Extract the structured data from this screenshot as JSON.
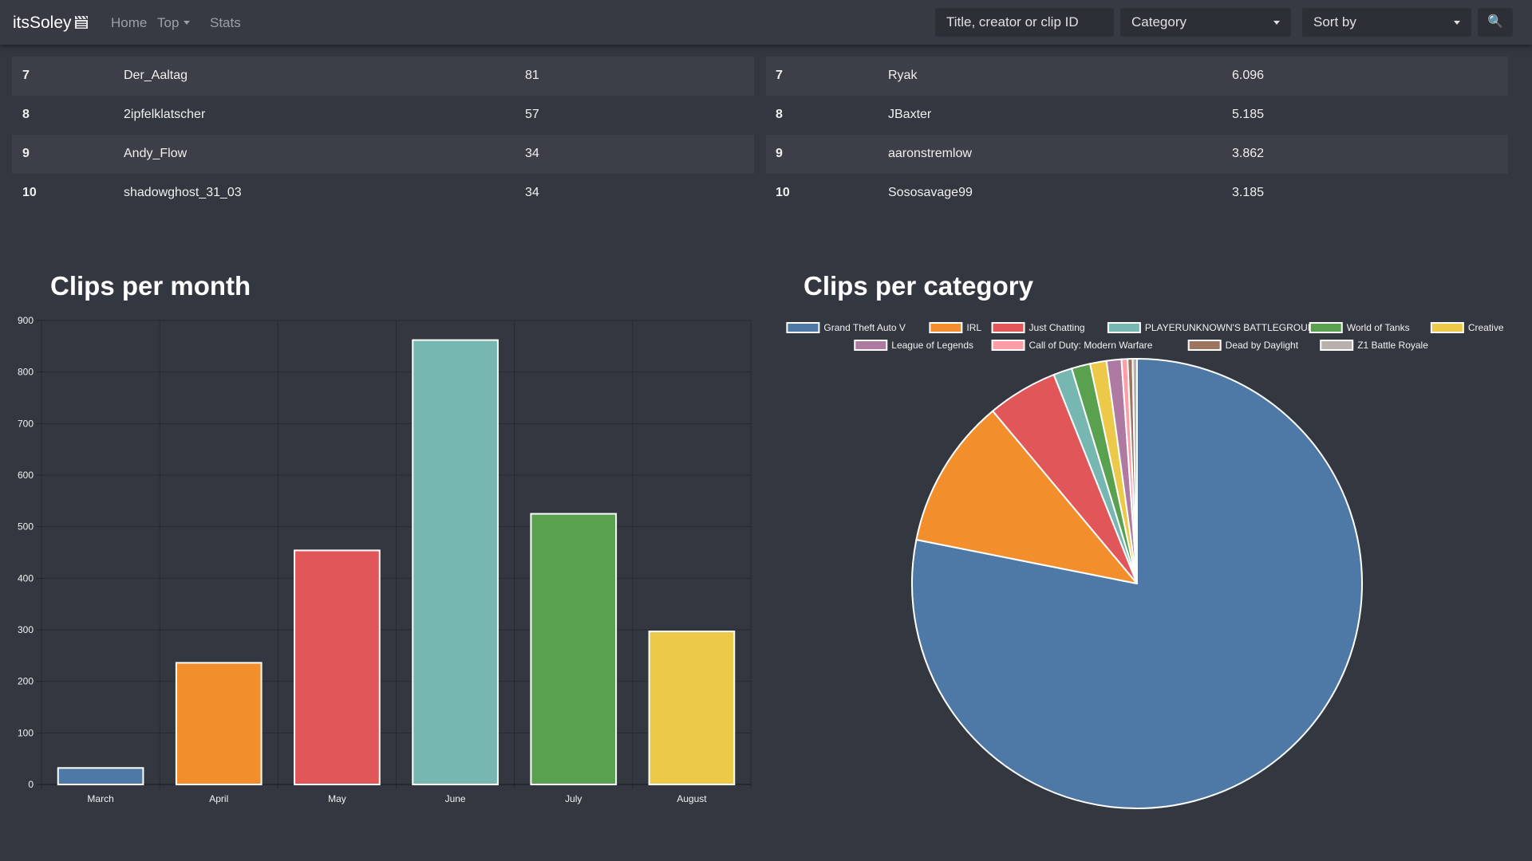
{
  "navbar": {
    "brand": "itsSoley",
    "links": {
      "home": "Home",
      "top": "Top",
      "stats": "Stats"
    },
    "search_placeholder": "Title, creator or clip ID",
    "category_label": "Category",
    "sort_label": "Sort by",
    "search_icon": "🔍"
  },
  "left_table": {
    "rows": [
      {
        "rank": "7",
        "name": "Der_Aaltag",
        "value": "81"
      },
      {
        "rank": "8",
        "name": "2ipfelklatscher",
        "value": "57"
      },
      {
        "rank": "9",
        "name": "Andy_Flow",
        "value": "34"
      },
      {
        "rank": "10",
        "name": "shadowghost_31_03",
        "value": "34"
      }
    ]
  },
  "right_table": {
    "rows": [
      {
        "rank": "7",
        "name": "Ryak",
        "value": "6.096"
      },
      {
        "rank": "8",
        "name": "JBaxter",
        "value": "5.185"
      },
      {
        "rank": "9",
        "name": "aaronstremlow",
        "value": "3.862"
      },
      {
        "rank": "10",
        "name": "Sososavage99",
        "value": "3.185"
      }
    ]
  },
  "chart_data": [
    {
      "type": "bar",
      "title": "Clips per month",
      "categories": [
        "March",
        "April",
        "May",
        "June",
        "July",
        "August"
      ],
      "values": [
        32,
        236,
        454,
        862,
        525,
        297
      ],
      "colors": [
        "#4e79a7",
        "#f28e2c",
        "#e15759",
        "#76b7b2",
        "#59a14f",
        "#edc949"
      ],
      "ylim": [
        0,
        900
      ],
      "yticks": [
        0,
        100,
        200,
        300,
        400,
        500,
        600,
        700,
        800,
        900
      ],
      "grid": true,
      "xlabel": "",
      "ylabel": ""
    },
    {
      "type": "pie",
      "title": "Clips per category",
      "legend_position": "top",
      "labels": [
        "Grand Theft Auto V",
        "IRL",
        "Just Chatting",
        "PLAYERUNKNOWN'S BATTLEGROUNDS",
        "World of Tanks",
        "Creative",
        "League of Legends",
        "Call of Duty: Modern Warfare",
        "Dead by Daylight",
        "Z1 Battle Royale"
      ],
      "values": [
        1982,
        274,
        128,
        34,
        34,
        30,
        27,
        11,
        9,
        8
      ],
      "colors": [
        "#4e79a7",
        "#f28e2c",
        "#e15759",
        "#76b7b2",
        "#59a14f",
        "#edc949",
        "#af7aa1",
        "#ff9da7",
        "#9c755f",
        "#bab0ab"
      ]
    }
  ]
}
